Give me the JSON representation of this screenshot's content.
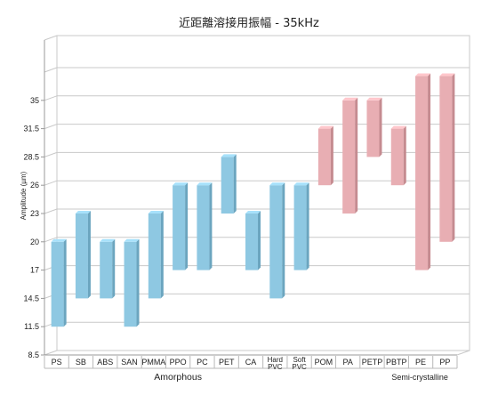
{
  "chart_data": {
    "type": "bar",
    "subtype": "floating-range",
    "title": "近距離溶接用振幅 - 35kHz",
    "ylabel": "Amplitude (µm)",
    "xlabel": "",
    "y_ticks": [
      "8.5",
      "11.5",
      "14.5",
      "17",
      "20",
      "23",
      "26",
      "28.5",
      "31.5",
      "35"
    ],
    "grid": true,
    "categories": [
      "PS",
      "SB",
      "ABS",
      "SAN",
      "PMMA",
      "PPO",
      "PC",
      "PET",
      "CA",
      "Hard PVC",
      "Soft PVC",
      "POM",
      "PA",
      "PETP",
      "PBTP",
      "PE",
      "PP"
    ],
    "category_labels": [
      [
        "PS"
      ],
      [
        "SB"
      ],
      [
        "ABS"
      ],
      [
        "SAN"
      ],
      [
        "PMMA"
      ],
      [
        "PPO"
      ],
      [
        "PC"
      ],
      [
        "PET"
      ],
      [
        "CA"
      ],
      [
        "Hard",
        "PVC"
      ],
      [
        "Soft",
        "PVC"
      ],
      [
        "POM"
      ],
      [
        "PA"
      ],
      [
        "PETP"
      ],
      [
        "PBTP"
      ],
      [
        "PE"
      ],
      [
        "PP"
      ]
    ],
    "groups": [
      {
        "name": "Amorphous",
        "start": 0,
        "end": 10,
        "color": "#8ec8e2"
      },
      {
        "name": "Semi-crystalline",
        "start": 11,
        "end": 16,
        "color": "#e8aeb3"
      }
    ],
    "ranges": [
      [
        11.5,
        20
      ],
      [
        14.5,
        23
      ],
      [
        14.5,
        20
      ],
      [
        11.5,
        20
      ],
      [
        14.5,
        23
      ],
      [
        17,
        26
      ],
      [
        17,
        26
      ],
      [
        23,
        28.5
      ],
      [
        17,
        23
      ],
      [
        14.5,
        26
      ],
      [
        17,
        26
      ],
      [
        26,
        31.5
      ],
      [
        23,
        35
      ],
      [
        28.5,
        35
      ],
      [
        26,
        31.5
      ],
      [
        17,
        38
      ],
      [
        20,
        38
      ]
    ]
  }
}
